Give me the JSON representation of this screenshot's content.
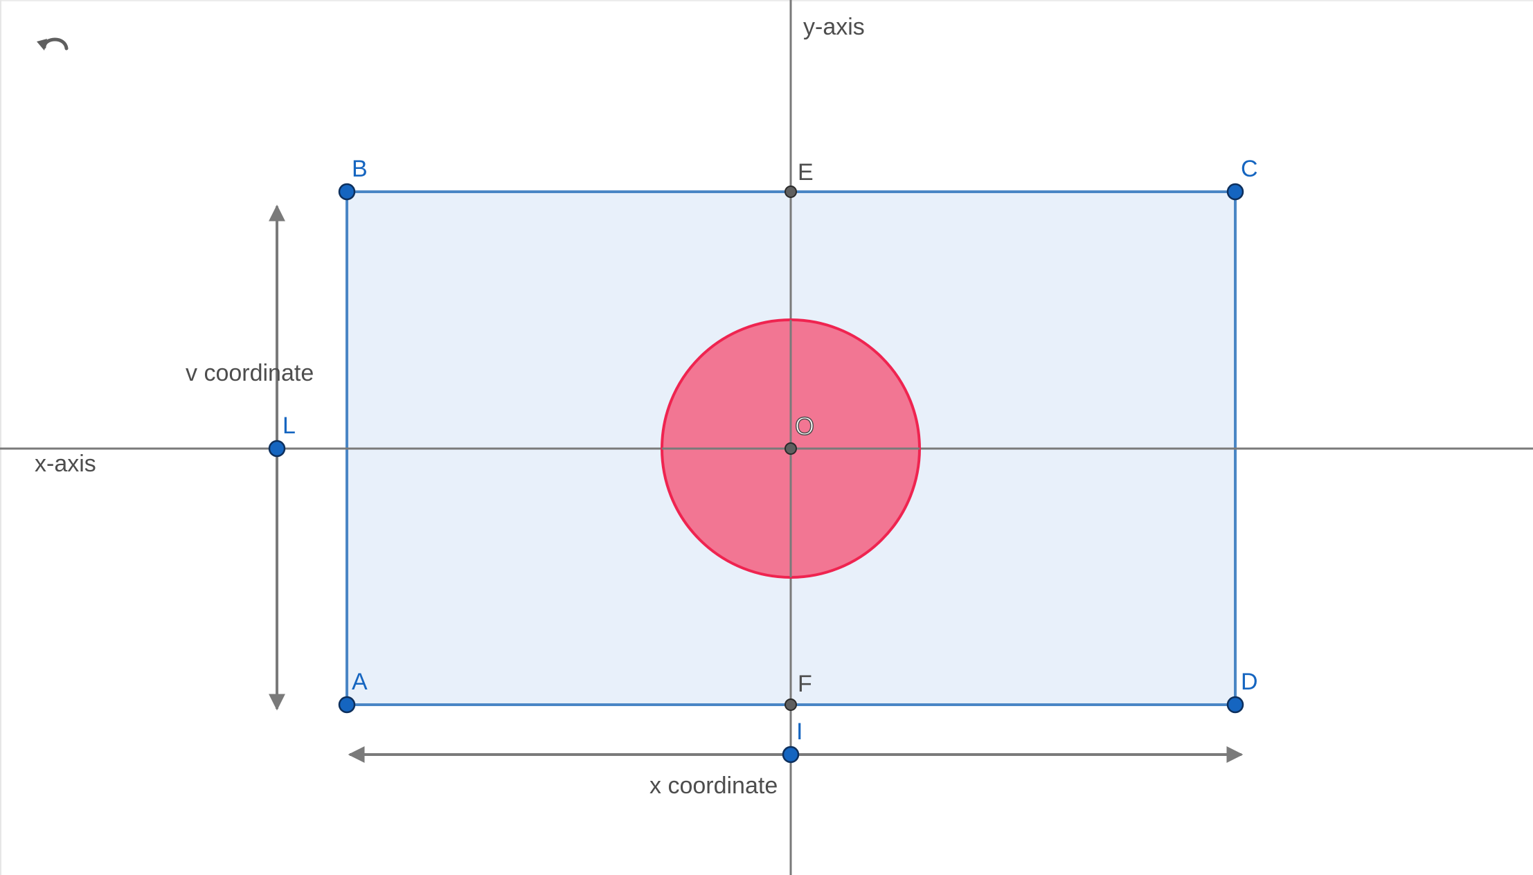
{
  "toolbar": {
    "undo_icon": "undo-icon"
  },
  "colors": {
    "axis": "#7a7a7a",
    "rectangle_fill": "#e8f0fa",
    "rectangle_stroke": "#4a86c5",
    "circle_fill": "#f27693",
    "circle_stroke": "#ef2450",
    "free_point": "#1565c0",
    "dependent_point": "#5f5f5f",
    "label_gray": "#4d4d4d",
    "label_blue": "#1565c0"
  },
  "axes": {
    "x_label": "x-axis",
    "y_label": "y-axis"
  },
  "measures": {
    "horizontal_label": "x coordinate",
    "vertical_label": "v coordinate"
  },
  "points": {
    "A": "A",
    "B": "B",
    "C": "C",
    "D": "D",
    "E": "E",
    "F": "F",
    "O": "O",
    "L": "L",
    "I": "I"
  }
}
